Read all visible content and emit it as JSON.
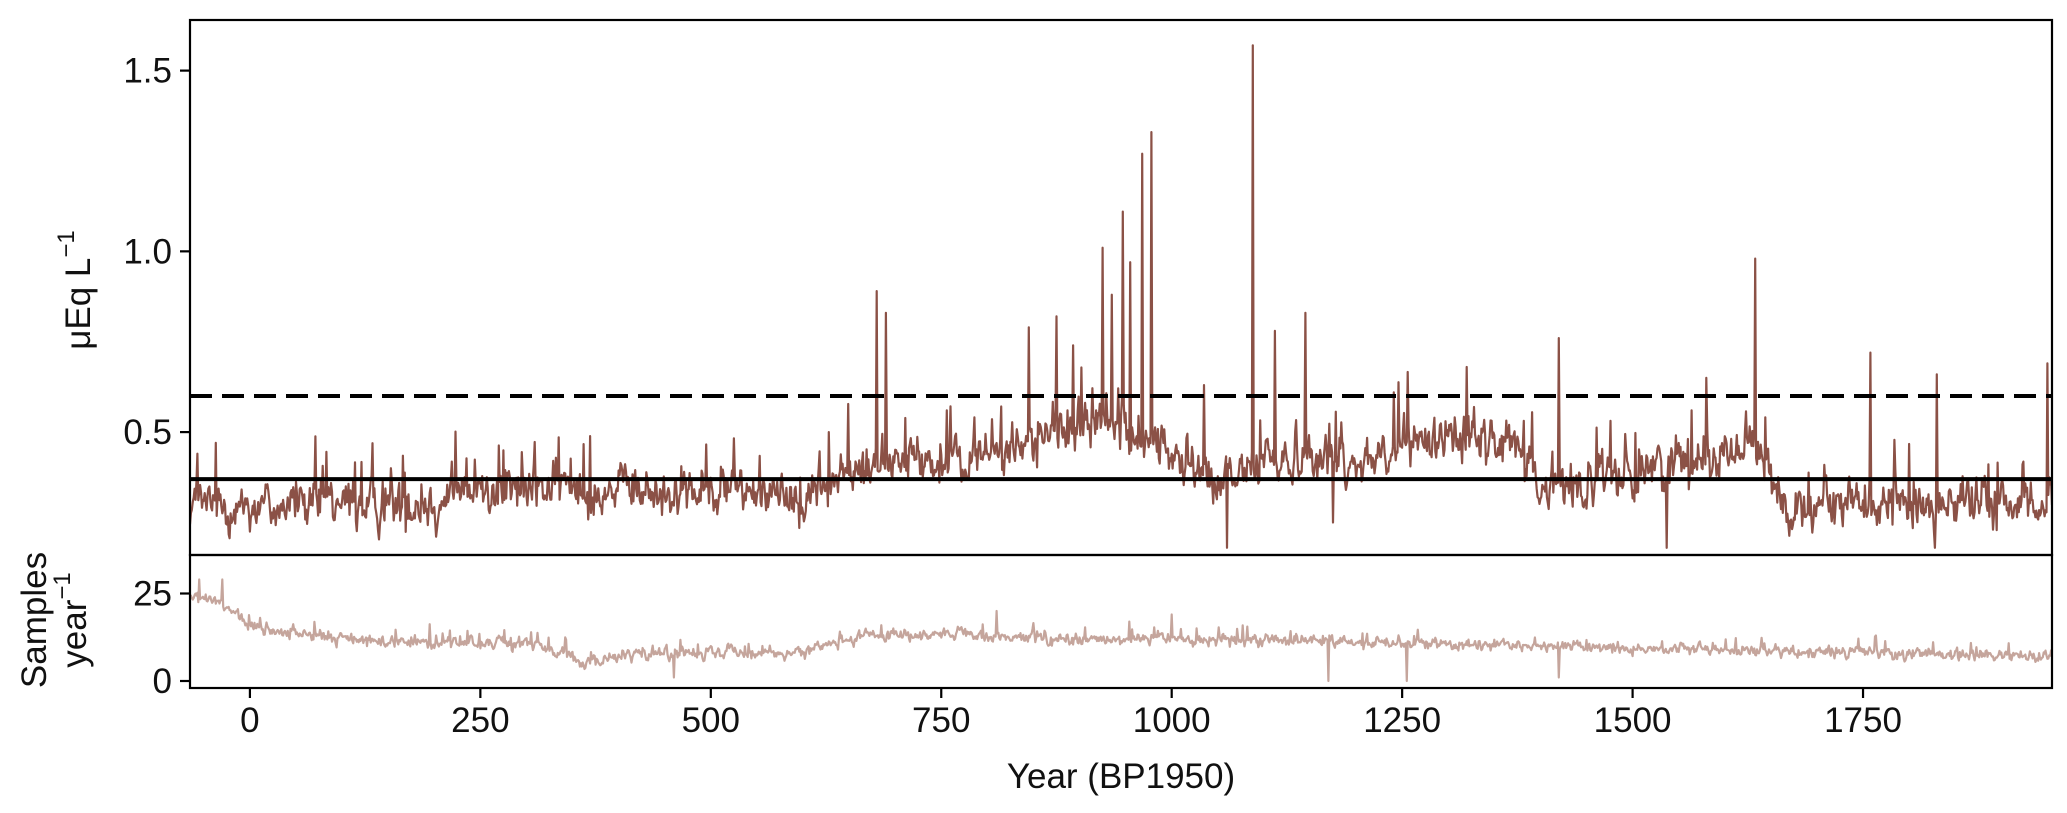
{
  "chart_data": [
    {
      "type": "line",
      "panel": "upper",
      "title": "",
      "xlabel": "",
      "ylabel": "μEq L",
      "ylabel_superscript": "−1",
      "xlim": [
        -65,
        1955
      ],
      "ylim": [
        0.16,
        1.64
      ],
      "yticks": [
        0.5,
        1.0,
        1.5
      ],
      "ytick_labels": [
        "0.5",
        "1.0",
        "1.5"
      ],
      "grid": false,
      "legend": "none",
      "colors": {
        "series": "#8b5146",
        "reference_lines": "#000000"
      },
      "reference_lines": [
        {
          "style": "dashed",
          "y": 0.6
        },
        {
          "style": "solid",
          "y": 0.37
        }
      ],
      "series": [
        {
          "style": "noisy annual record",
          "baseline_by_year": [
            [
              -65,
              0.3
            ],
            [
              200,
              0.3
            ],
            [
              250,
              0.34
            ],
            [
              350,
              0.35
            ],
            [
              450,
              0.33
            ],
            [
              550,
              0.35
            ],
            [
              600,
              0.32
            ],
            [
              640,
              0.38
            ],
            [
              700,
              0.42
            ],
            [
              760,
              0.41
            ],
            [
              820,
              0.45
            ],
            [
              870,
              0.5
            ],
            [
              920,
              0.52
            ],
            [
              980,
              0.48
            ],
            [
              1050,
              0.35
            ],
            [
              1100,
              0.43
            ],
            [
              1200,
              0.42
            ],
            [
              1300,
              0.5
            ],
            [
              1380,
              0.45
            ],
            [
              1400,
              0.34
            ],
            [
              1500,
              0.38
            ],
            [
              1560,
              0.43
            ],
            [
              1640,
              0.46
            ],
            [
              1660,
              0.3
            ],
            [
              1955,
              0.3
            ]
          ],
          "peaks": [
            [
              680,
              0.89
            ],
            [
              690,
              0.83
            ],
            [
              845,
              0.79
            ],
            [
              875,
              0.82
            ],
            [
              893,
              0.74
            ],
            [
              925,
              1.01
            ],
            [
              935,
              0.88
            ],
            [
              947,
              1.11
            ],
            [
              955,
              0.97
            ],
            [
              968,
              1.27
            ],
            [
              978,
              1.33
            ],
            [
              1035,
              0.63
            ],
            [
              1088,
              1.57
            ],
            [
              1112,
              0.78
            ],
            [
              1145,
              0.83
            ],
            [
              1320,
              0.68
            ],
            [
              1420,
              0.76
            ],
            [
              1580,
              0.65
            ],
            [
              1633,
              0.98
            ],
            [
              1758,
              0.72
            ],
            [
              1830,
              0.66
            ],
            [
              1950,
              0.69
            ]
          ],
          "dips": [
            [
              1060,
              0.17
            ],
            [
              1175,
              0.25
            ],
            [
              1537,
              0.18
            ]
          ]
        }
      ]
    },
    {
      "type": "line",
      "panel": "lower",
      "title": "",
      "xlabel": "Year (BP1950)",
      "ylabel_lines": [
        "Samples",
        "year"
      ],
      "ylabel_superscript": "−1",
      "xlim": [
        -65,
        1955
      ],
      "ylim": [
        -2,
        36
      ],
      "xticks": [
        0,
        250,
        500,
        750,
        1000,
        1250,
        1500,
        1750
      ],
      "xtick_labels": [
        "0",
        "250",
        "500",
        "750",
        "1000",
        "1250",
        "1500",
        "1750"
      ],
      "yticks": [
        0,
        25
      ],
      "ytick_labels": [
        "0",
        "25"
      ],
      "grid": false,
      "legend": "none",
      "colors": {
        "series": "#c5a59c"
      },
      "series": [
        {
          "style": "noisy sampling rate",
          "baseline_by_year": [
            [
              -65,
              24
            ],
            [
              -40,
              23
            ],
            [
              -20,
              20
            ],
            [
              0,
              15
            ],
            [
              100,
              12
            ],
            [
              200,
              11
            ],
            [
              300,
              11
            ],
            [
              340,
              8
            ],
            [
              360,
              5
            ],
            [
              380,
              5
            ],
            [
              400,
              8
            ],
            [
              600,
              8
            ],
            [
              660,
              13
            ],
            [
              800,
              13
            ],
            [
              900,
              12
            ],
            [
              1000,
              12
            ],
            [
              1250,
              11
            ],
            [
              1400,
              10
            ],
            [
              1600,
              9
            ],
            [
              1800,
              8
            ],
            [
              1955,
              7
            ]
          ],
          "peaks": [
            [
              -55,
              29
            ],
            [
              -30,
              29
            ],
            [
              810,
              20
            ],
            [
              1000,
              19
            ]
          ],
          "dips": [
            [
              460,
              1
            ],
            [
              1170,
              0
            ],
            [
              1255,
              0
            ],
            [
              1420,
              1
            ]
          ]
        }
      ]
    }
  ]
}
